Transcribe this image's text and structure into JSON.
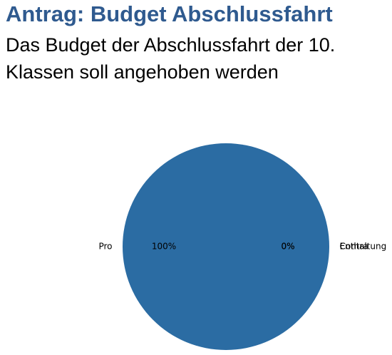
{
  "chart_data": {
    "type": "pie",
    "title": "Antrag: Budget Abschlussfahrt",
    "subtitle": "Das Budget der Abschlussfahrt der 10. Klassen soll angehoben werden",
    "categories": [
      "Pro",
      "Contra",
      "Enthaltung"
    ],
    "values": [
      100,
      0,
      0
    ],
    "value_labels": [
      "100%",
      "0%",
      "0%"
    ],
    "color": "#2b6ca3"
  }
}
